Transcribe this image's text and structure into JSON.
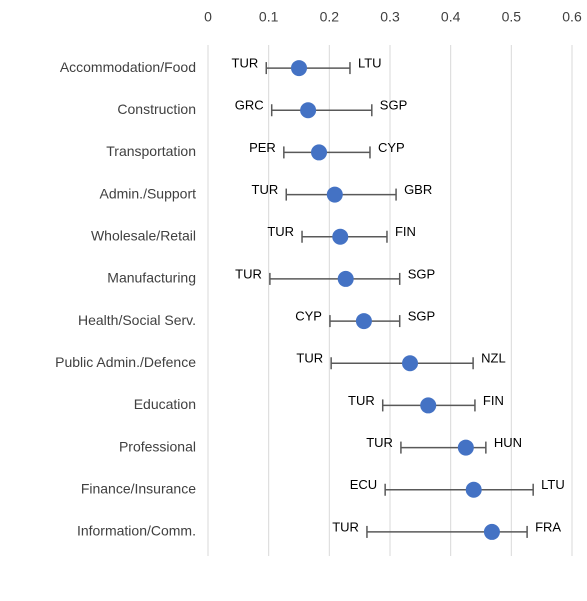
{
  "chart_data": {
    "type": "range-dot",
    "categories": [
      "Accommodation/Food",
      "Construction",
      "Transportation",
      "Admin./Support",
      "Wholesale/Retail",
      "Manufacturing",
      "Health/Social Serv.",
      "Public Admin./Defence",
      "Education",
      "Professional",
      "Finance/Insurance",
      "Information/Comm."
    ],
    "values": [
      0.15,
      0.165,
      0.183,
      0.209,
      0.218,
      0.227,
      0.257,
      0.333,
      0.363,
      0.425,
      0.438,
      0.468
    ],
    "lows": [
      0.096,
      0.105,
      0.125,
      0.129,
      0.155,
      0.102,
      0.201,
      0.203,
      0.288,
      0.318,
      0.292,
      0.262
    ],
    "highs": [
      0.234,
      0.27,
      0.267,
      0.31,
      0.295,
      0.316,
      0.316,
      0.437,
      0.44,
      0.458,
      0.536,
      0.526
    ],
    "low_labels": [
      "TUR",
      "GRC",
      "PER",
      "TUR",
      "TUR",
      "TUR",
      "CYP",
      "TUR",
      "TUR",
      "TUR",
      "ECU",
      "TUR"
    ],
    "high_labels": [
      "LTU",
      "SGP",
      "CYP",
      "GBR",
      "FIN",
      "SGP",
      "SGP",
      "NZL",
      "FIN",
      "HUN",
      "LTU",
      "FRA"
    ],
    "color": "#4472c4",
    "range_color": "#595959",
    "xlim": [
      0,
      0.6
    ],
    "xticks": [
      0,
      0.1,
      0.2,
      0.3,
      0.4,
      0.5,
      0.6
    ],
    "grid": true
  }
}
